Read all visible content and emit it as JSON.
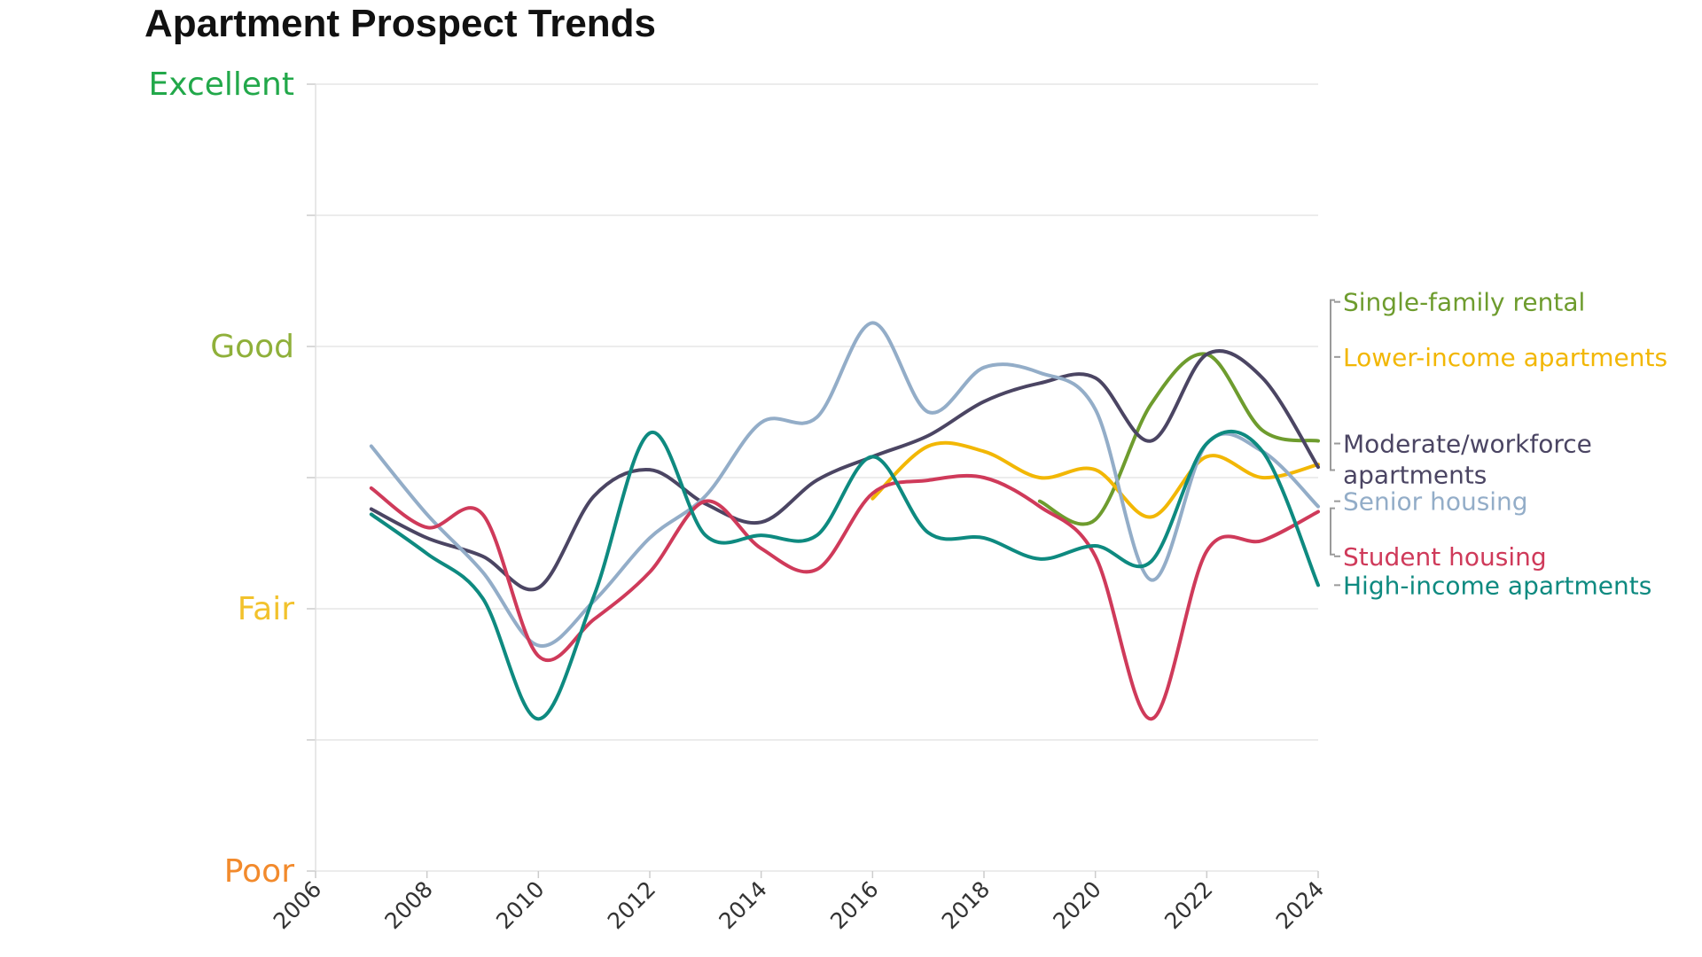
{
  "chart_data": {
    "type": "line",
    "title": "Apartment Prospect Trends",
    "xlabel": "",
    "ylabel": "",
    "xlim": [
      2006,
      2024
    ],
    "ylim": [
      1,
      4
    ],
    "grid": true,
    "legend_position": "right",
    "x_ticks": [
      "2006",
      "2008",
      "2010",
      "2012",
      "2014",
      "2016",
      "2018",
      "2020",
      "2022",
      "2024"
    ],
    "y_categories": [
      {
        "label": "Excellent",
        "value": 4,
        "color": "#22a84a"
      },
      {
        "label": "Good",
        "value": 3,
        "color": "#8fb03a"
      },
      {
        "label": "Fair",
        "value": 2,
        "color": "#f2c22c"
      },
      {
        "label": "Poor",
        "value": 1,
        "color": "#f28a2c"
      }
    ],
    "series": [
      {
        "name": "Single-family rental",
        "color": "#6e9c2e",
        "legend_value": 3.17,
        "points": [
          [
            2019,
            2.41
          ],
          [
            2020,
            2.34
          ],
          [
            2021,
            2.78
          ],
          [
            2022,
            2.97
          ],
          [
            2023,
            2.68
          ],
          [
            2024,
            2.64
          ]
        ]
      },
      {
        "name": "Lower-income apartments",
        "color": "#f2b705",
        "legend_value": 2.96,
        "points": [
          [
            2016,
            2.42
          ],
          [
            2017,
            2.62
          ],
          [
            2018,
            2.6
          ],
          [
            2019,
            2.5
          ],
          [
            2020,
            2.53
          ],
          [
            2021,
            2.35
          ],
          [
            2022,
            2.58
          ],
          [
            2023,
            2.5
          ],
          [
            2024,
            2.55
          ]
        ]
      },
      {
        "name": "Moderate/workforce apartments",
        "color": "#4b4563",
        "legend_value": 2.63,
        "points": [
          [
            2007,
            2.38
          ],
          [
            2008,
            2.27
          ],
          [
            2009,
            2.2
          ],
          [
            2010,
            2.08
          ],
          [
            2011,
            2.43
          ],
          [
            2012,
            2.53
          ],
          [
            2013,
            2.4
          ],
          [
            2014,
            2.33
          ],
          [
            2015,
            2.49
          ],
          [
            2016,
            2.58
          ],
          [
            2017,
            2.66
          ],
          [
            2018,
            2.79
          ],
          [
            2019,
            2.86
          ],
          [
            2020,
            2.88
          ],
          [
            2021,
            2.64
          ],
          [
            2022,
            2.97
          ],
          [
            2023,
            2.88
          ],
          [
            2024,
            2.54
          ]
        ]
      },
      {
        "name": "Senior housing",
        "color": "#93adc8",
        "legend_value": 2.41,
        "points": [
          [
            2007,
            2.62
          ],
          [
            2008,
            2.36
          ],
          [
            2009,
            2.14
          ],
          [
            2010,
            1.86
          ],
          [
            2011,
            2.03
          ],
          [
            2012,
            2.27
          ],
          [
            2013,
            2.43
          ],
          [
            2014,
            2.71
          ],
          [
            2015,
            2.73
          ],
          [
            2016,
            3.09
          ],
          [
            2017,
            2.75
          ],
          [
            2018,
            2.92
          ],
          [
            2019,
            2.9
          ],
          [
            2020,
            2.76
          ],
          [
            2021,
            2.11
          ],
          [
            2022,
            2.63
          ],
          [
            2023,
            2.6
          ],
          [
            2024,
            2.39
          ]
        ]
      },
      {
        "name": "Student housing",
        "color": "#cf3a5a",
        "legend_value": 2.2,
        "points": [
          [
            2007,
            2.46
          ],
          [
            2008,
            2.31
          ],
          [
            2009,
            2.36
          ],
          [
            2010,
            1.82
          ],
          [
            2011,
            1.96
          ],
          [
            2012,
            2.14
          ],
          [
            2013,
            2.41
          ],
          [
            2014,
            2.23
          ],
          [
            2015,
            2.15
          ],
          [
            2016,
            2.44
          ],
          [
            2017,
            2.49
          ],
          [
            2018,
            2.5
          ],
          [
            2019,
            2.39
          ],
          [
            2020,
            2.2
          ],
          [
            2021,
            1.58
          ],
          [
            2022,
            2.22
          ],
          [
            2023,
            2.26
          ],
          [
            2024,
            2.37
          ]
        ]
      },
      {
        "name": "High-income apartments",
        "color": "#0e8a80",
        "legend_value": 2.09,
        "points": [
          [
            2007,
            2.36
          ],
          [
            2008,
            2.21
          ],
          [
            2009,
            2.04
          ],
          [
            2010,
            1.58
          ],
          [
            2011,
            2.05
          ],
          [
            2012,
            2.67
          ],
          [
            2013,
            2.28
          ],
          [
            2014,
            2.28
          ],
          [
            2015,
            2.28
          ],
          [
            2016,
            2.58
          ],
          [
            2017,
            2.29
          ],
          [
            2018,
            2.27
          ],
          [
            2019,
            2.19
          ],
          [
            2020,
            2.24
          ],
          [
            2021,
            2.18
          ],
          [
            2022,
            2.63
          ],
          [
            2023,
            2.6
          ],
          [
            2024,
            2.09
          ]
        ]
      }
    ]
  }
}
